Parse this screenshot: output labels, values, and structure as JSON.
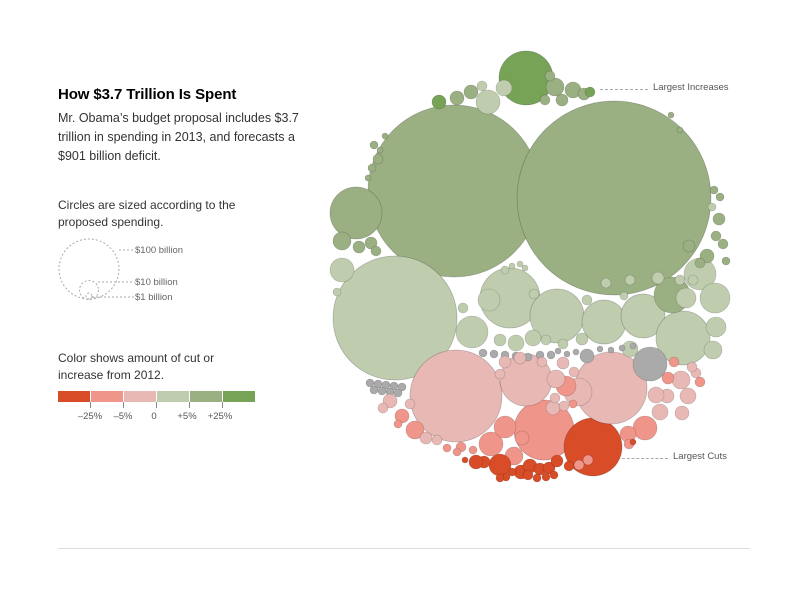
{
  "header": {
    "title": "How $3.7 Trillion Is Spent",
    "intro": "Mr. Obama’s budget proposal includes $3.7 trillion in spending in 2013, and forecasts a $901 billion deficit."
  },
  "size_legend": {
    "note": "Circles are sized according to the proposed spending.",
    "labels": [
      "$100 billion",
      "$10 billion",
      "$1 billion"
    ]
  },
  "color_legend": {
    "note": "Color shows amount of cut or increase from 2012.",
    "tick_labels": [
      "–25%",
      "–5%",
      "0",
      "+5%",
      "+25%"
    ],
    "colors": [
      "#d84c27",
      "#f0958a",
      "#e8b8b5",
      "#bfcdae",
      "#9aaf82",
      "#77a357"
    ],
    "neutral_color": "#aaaaaa"
  },
  "callouts": {
    "increases": "Largest Increases",
    "cuts": "Largest Cuts"
  },
  "chart_data": {
    "type": "bubble",
    "title": "How $3.7 Trillion Is Spent",
    "size_unit": "billions of dollars (proposed 2013 spending)",
    "color_unit": "percent change from 2012",
    "color_bins": [
      "-25%",
      "-5%",
      "0",
      "+5%",
      "+25%"
    ]
  }
}
